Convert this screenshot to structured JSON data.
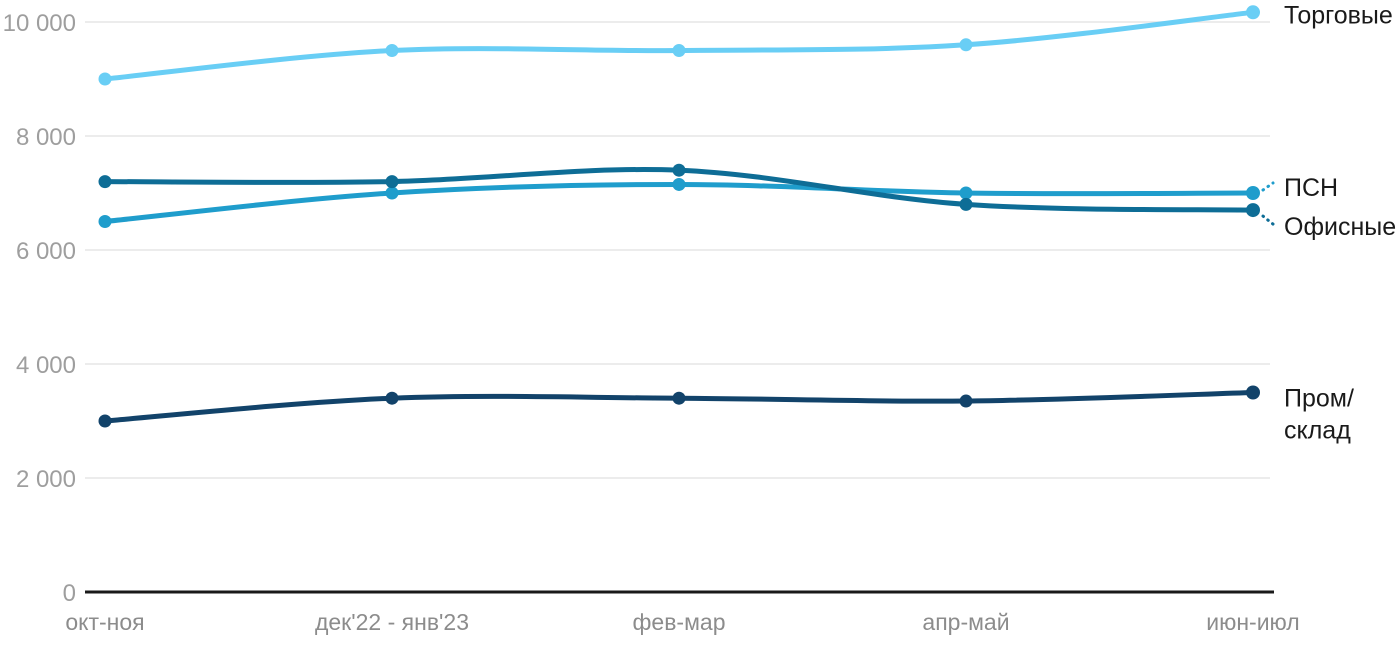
{
  "chart_data": {
    "type": "line",
    "title": "",
    "xlabel": "",
    "ylabel": "",
    "categories": [
      "окт-ноя",
      "дек'22 - янв'23",
      "фев-мар",
      "апр-май",
      "июн-июл"
    ],
    "series": [
      {
        "name": "Торговые",
        "label_lines": [
          "Торговые"
        ],
        "color": "#69cef5",
        "values": [
          9000,
          9500,
          9500,
          9600,
          10170
        ],
        "leader": "none"
      },
      {
        "name": "ПСН",
        "label_lines": [
          "ПСН"
        ],
        "color": "#1f9dcc",
        "values": [
          6500,
          7000,
          7150,
          7000,
          7000
        ],
        "leader": "up"
      },
      {
        "name": "Офисные",
        "label_lines": [
          "Офисные"
        ],
        "color": "#0e6d96",
        "values": [
          7200,
          7200,
          7400,
          6800,
          6700
        ],
        "leader": "down"
      },
      {
        "name": "Пром/склад",
        "label_lines": [
          "Пром/",
          "склад"
        ],
        "color": "#12436a",
        "values": [
          3000,
          3400,
          3400,
          3350,
          3500
        ],
        "leader": "none"
      }
    ],
    "yticks": [
      {
        "value": 0,
        "label": "0"
      },
      {
        "value": 2000,
        "label": "2 000"
      },
      {
        "value": 4000,
        "label": "4 000"
      },
      {
        "value": 6000,
        "label": "6 000"
      },
      {
        "value": 8000,
        "label": "8 000"
      },
      {
        "value": 10000,
        "label": "10 000"
      }
    ],
    "ylim": [
      0,
      10500
    ],
    "grid": true,
    "legend_position": "line-end-right",
    "colors": {
      "axis": "#1a1a1a",
      "grid": "#e6e6e6",
      "y_tick_label": "#9e9e9e",
      "x_tick_label": "#8c8c8c",
      "series_label_text": "#1a1a1a",
      "background": "#ffffff"
    }
  }
}
